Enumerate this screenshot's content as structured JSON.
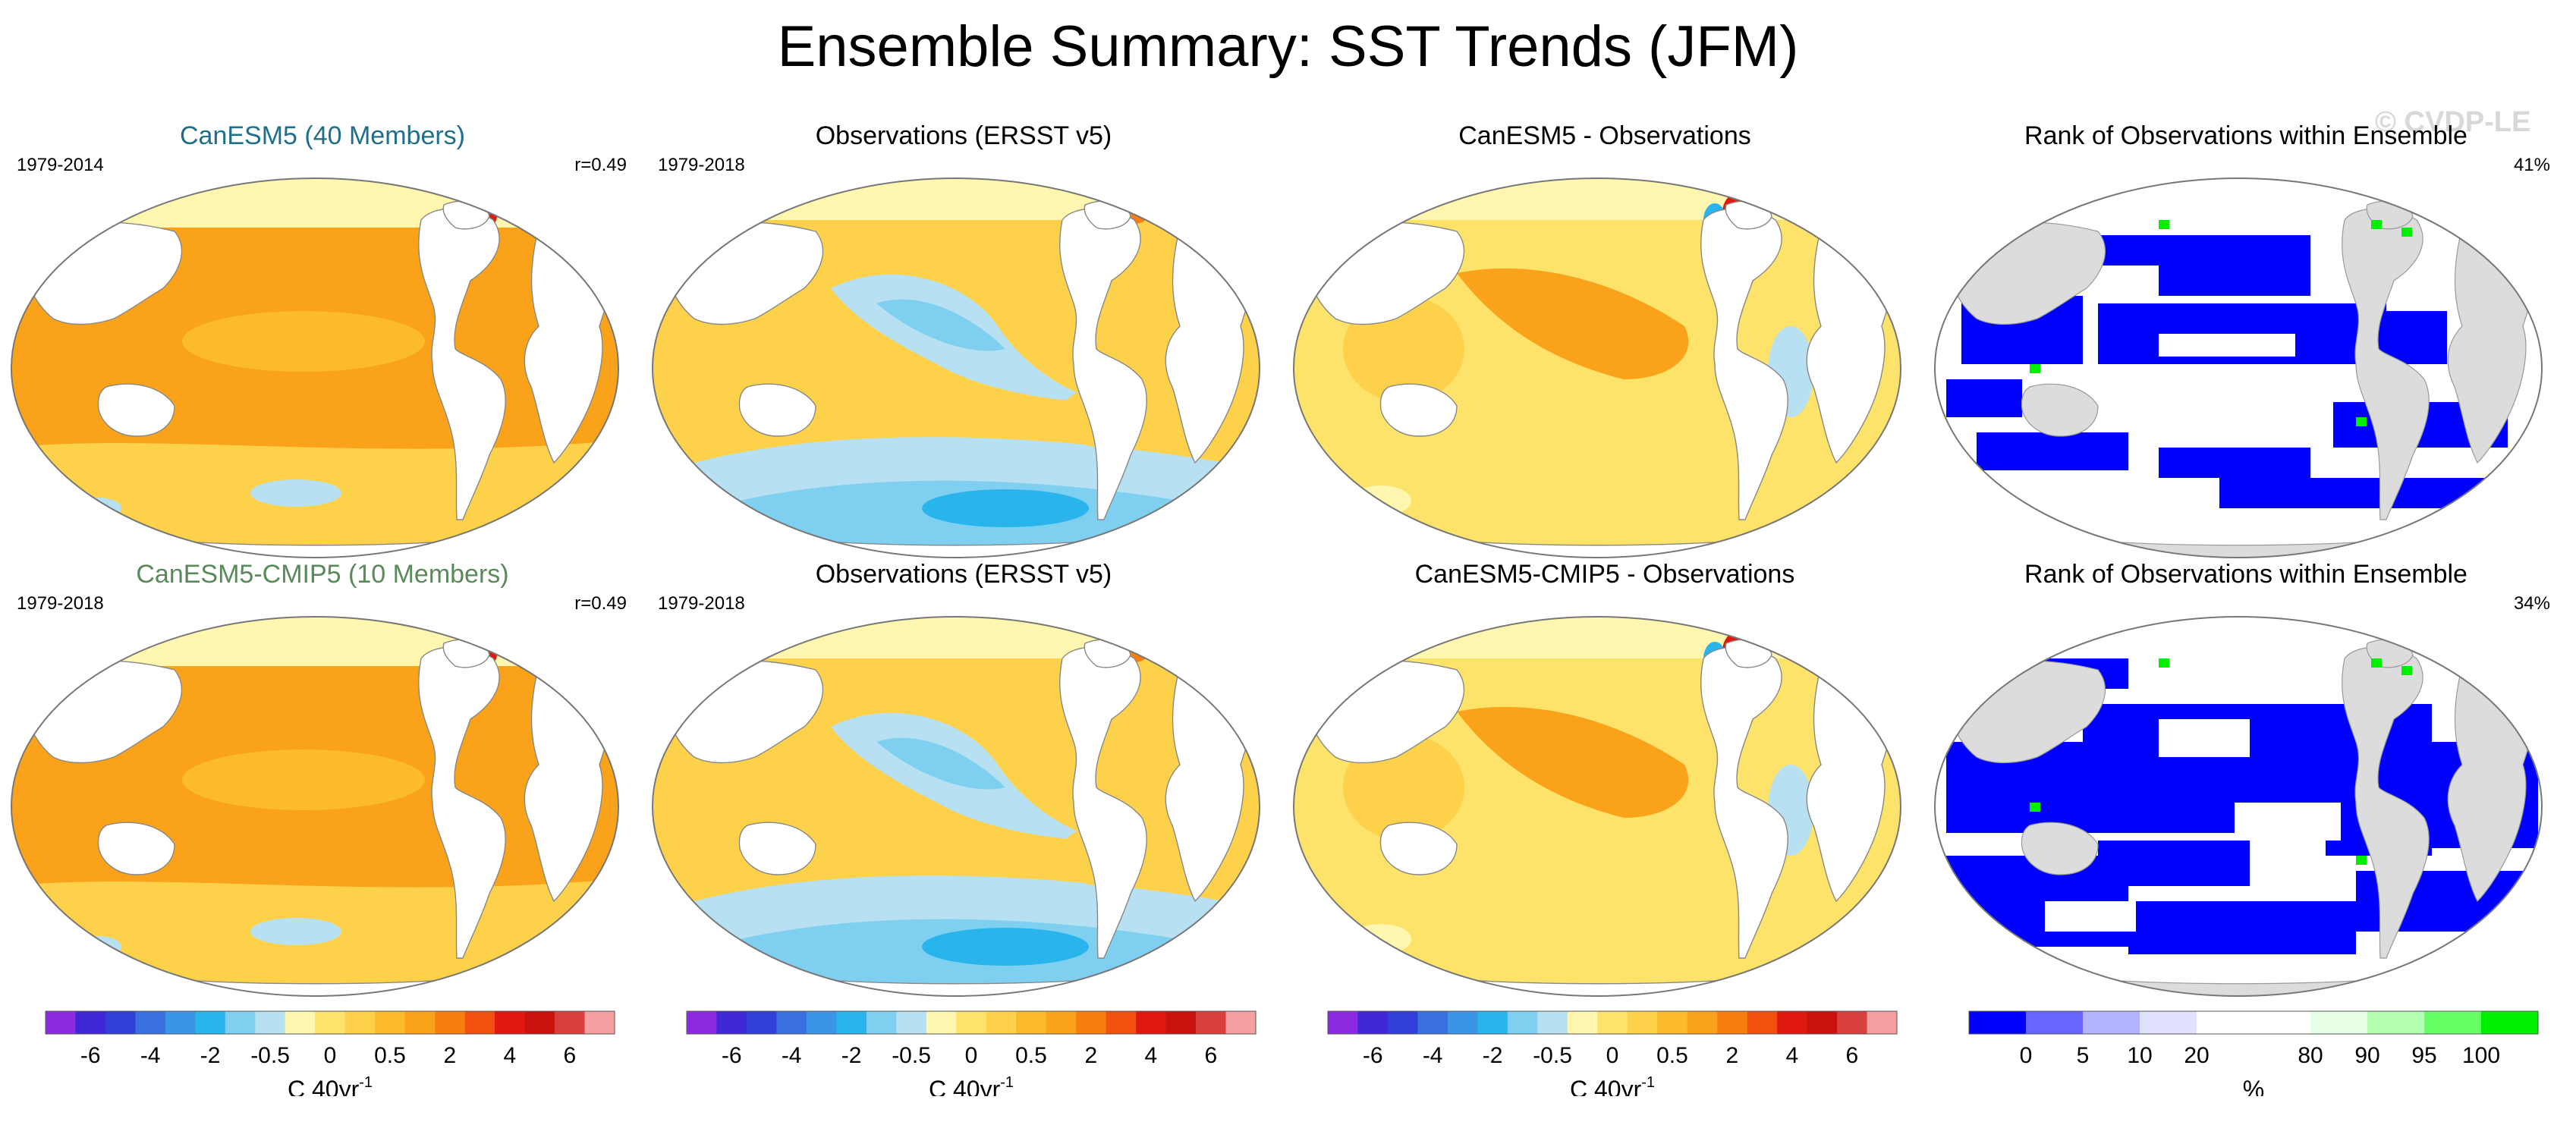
{
  "title": "Ensemble Summary: SST Trends (JFM)",
  "watermark": "© CVDP-LE",
  "panels": [
    {
      "title": "CanESM5 (40 Members)",
      "title_color": "#1f6f8b",
      "period": "1979-2014",
      "stat": "r=0.49",
      "kind": "trend-model"
    },
    {
      "title": "Observations (ERSST v5)",
      "title_color": "#000000",
      "period": "1979-2018",
      "stat": "",
      "kind": "trend-obs"
    },
    {
      "title": "CanESM5 - Observations",
      "title_color": "#000000",
      "period": "",
      "stat": "",
      "kind": "trend-diff"
    },
    {
      "title": "Rank of Observations within Ensemble",
      "title_color": "#000000",
      "period": "",
      "stat": "41%",
      "kind": "rank"
    },
    {
      "title": "CanESM5-CMIP5 (10 Members)",
      "title_color": "#5a8a5a",
      "period": "1979-2018",
      "stat": "r=0.49",
      "kind": "trend-model"
    },
    {
      "title": "Observations (ERSST v5)",
      "title_color": "#000000",
      "period": "1979-2018",
      "stat": "",
      "kind": "trend-obs"
    },
    {
      "title": "CanESM5-CMIP5 - Observations",
      "title_color": "#000000",
      "period": "",
      "stat": "",
      "kind": "trend-diff"
    },
    {
      "title": "Rank of Observations within Ensemble",
      "title_color": "#000000",
      "period": "",
      "stat": "34%",
      "kind": "rank"
    }
  ],
  "chart_data": {
    "type": "heatmap",
    "trend_colorbar": {
      "colors": [
        "#8a2be2",
        "#3f26d6",
        "#2f3fd8",
        "#3a6fe0",
        "#3a95e6",
        "#29b4ec",
        "#7fd0f0",
        "#b7e0f2",
        "#fff7b0",
        "#fde36a",
        "#fdd24a",
        "#fbbb2c",
        "#f9a21a",
        "#f77f10",
        "#f2500e",
        "#e0190f",
        "#c9120e",
        "#d84040",
        "#f5a0a0"
      ],
      "tick_labels": [
        "-6",
        "-4",
        "-2",
        "-0.5",
        "0",
        "0.5",
        "2",
        "4",
        "6"
      ],
      "label": "C 40yr",
      "label_sup": "-1"
    },
    "rank_colorbar": {
      "colors": [
        "#0000ff",
        "#6666ff",
        "#b2b2ff",
        "#e0e0ff",
        "#ffffff",
        "#ffffff",
        "#e6ffe6",
        "#b2ffb2",
        "#66ff66",
        "#00ee00"
      ],
      "tick_labels": [
        "0",
        "5",
        "10",
        "20",
        "80",
        "90",
        "95",
        "100"
      ],
      "label": "%"
    }
  }
}
